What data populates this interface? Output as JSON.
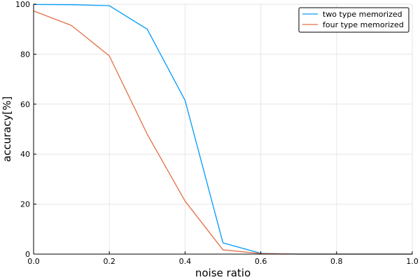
{
  "chart_data": {
    "type": "line",
    "xlabel": "noise ratio",
    "ylabel": "accuracy[%]",
    "xlim": [
      0,
      1
    ],
    "ylim": [
      0,
      100
    ],
    "xticks": [
      0,
      0.2,
      0.4,
      0.6,
      0.8,
      1.0
    ],
    "xtick_labels": [
      "0.0",
      "0.2",
      "0.4",
      "0.6",
      "0.8",
      "1.0"
    ],
    "yticks": [
      0,
      20,
      40,
      60,
      80,
      100
    ],
    "ytick_labels": [
      "0",
      "20",
      "40",
      "60",
      "80",
      "100"
    ],
    "grid": true,
    "legend_position": "top-right",
    "series": [
      {
        "name": "two type memorized",
        "color": "#009af9",
        "x": [
          0.0,
          0.1,
          0.2,
          0.3,
          0.4,
          0.5,
          0.6,
          0.7,
          0.8,
          0.9,
          1.0
        ],
        "y": [
          99.9,
          99.8,
          99.4,
          90.0,
          61.5,
          4.5,
          0.3,
          0.0,
          0.0,
          0.0,
          0.0
        ]
      },
      {
        "name": "four type memorized",
        "color": "#e26f46",
        "x": [
          0.0,
          0.1,
          0.2,
          0.3,
          0.4,
          0.5,
          0.6,
          0.7,
          0.8,
          0.9,
          1.0
        ],
        "y": [
          97.3,
          91.5,
          79.3,
          48.0,
          21.2,
          1.7,
          0.2,
          0.0,
          0.0,
          0.0,
          0.0
        ]
      }
    ]
  }
}
